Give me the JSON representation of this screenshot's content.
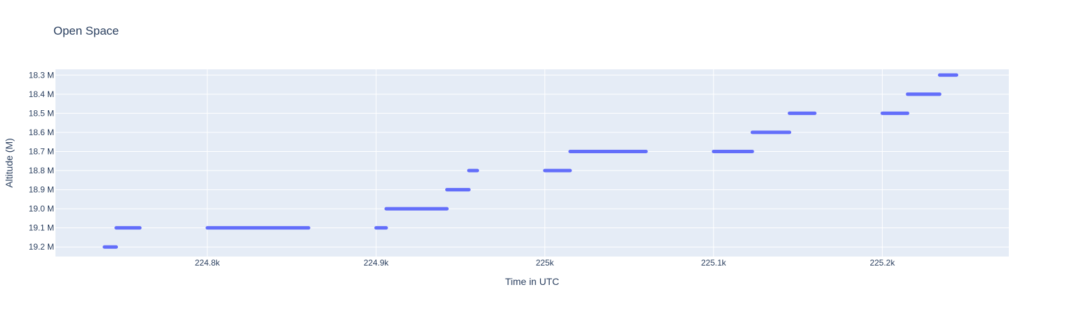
{
  "chart_data": {
    "type": "line",
    "title": "Open Space",
    "xlabel": "Time in UTC",
    "ylabel": "Altitude (M)",
    "xlim": [
      224.71,
      225.275
    ],
    "ylim": [
      19.25,
      18.27
    ],
    "y_reversed": true,
    "x_ticks": [
      224.8,
      224.9,
      225.0,
      225.1,
      225.2
    ],
    "x_tick_labels": [
      "224.8k",
      "224.9k",
      "225k",
      "225.1k",
      "225.2k"
    ],
    "y_ticks": [
      18.3,
      18.4,
      18.5,
      18.6,
      18.7,
      18.8,
      18.9,
      19.0,
      19.1,
      19.2
    ],
    "y_tick_labels": [
      "18.3 M",
      "18.4 M",
      "18.5 M",
      "18.6 M",
      "18.7 M",
      "18.8 M",
      "18.9 M",
      "19.0 M",
      "19.1 M",
      "19.2 M"
    ],
    "grid": true,
    "colors": {
      "series": "#636efa",
      "plot_bg": "#e5ecf6",
      "grid": "#ffffff",
      "text": "#2a3f5f"
    },
    "series": [
      {
        "segments": [
          {
            "x": [
              224.739,
              224.746
            ],
            "y": 19.2
          },
          {
            "x": [
              224.746,
              224.76
            ],
            "y": 19.1
          },
          {
            "x": [
              224.8,
              224.86
            ],
            "y": 19.1
          },
          {
            "x": [
              224.9,
              224.906
            ],
            "y": 19.1
          },
          {
            "x": [
              224.906,
              224.942
            ],
            "y": 19.0
          },
          {
            "x": [
              224.942,
              224.955
            ],
            "y": 18.9
          },
          {
            "x": [
              224.955,
              224.96
            ],
            "y": 18.8
          },
          {
            "x": [
              225.0,
              225.015
            ],
            "y": 18.8
          },
          {
            "x": [
              225.015,
              225.06
            ],
            "y": 18.7
          },
          {
            "x": [
              225.1,
              225.123
            ],
            "y": 18.7
          },
          {
            "x": [
              225.123,
              225.145
            ],
            "y": 18.6
          },
          {
            "x": [
              225.145,
              225.16
            ],
            "y": 18.5
          },
          {
            "x": [
              225.2,
              225.215
            ],
            "y": 18.5
          },
          {
            "x": [
              225.215,
              225.234
            ],
            "y": 18.4
          },
          {
            "x": [
              225.234,
              225.244
            ],
            "y": 18.3
          }
        ]
      }
    ]
  }
}
